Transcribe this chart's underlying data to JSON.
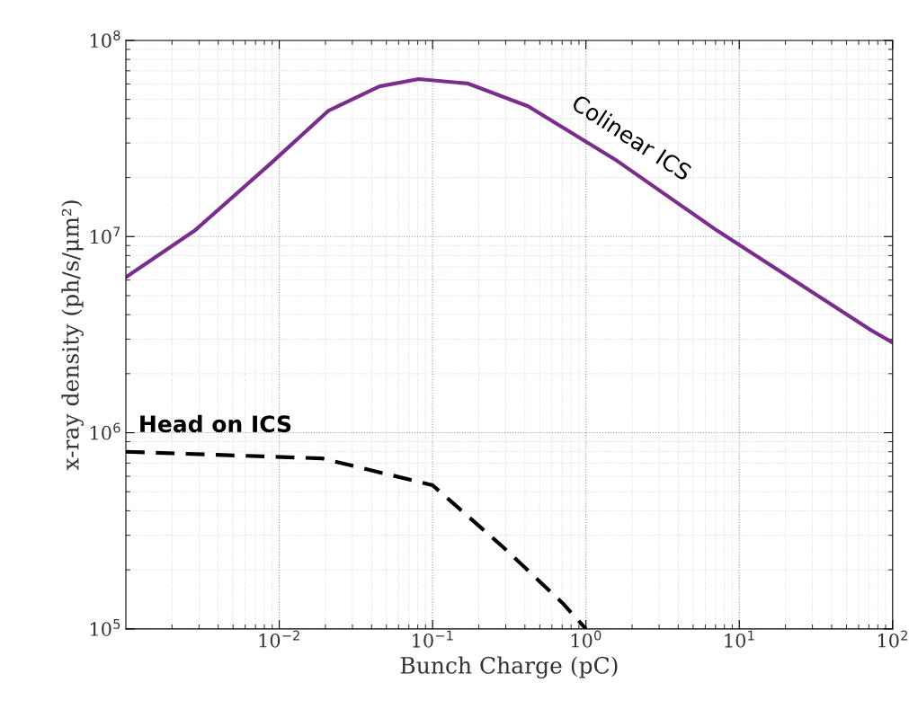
{
  "chart_data": {
    "type": "line",
    "xlabel": "Bunch Charge (pC)",
    "ylabel": "x-ray density (ph/s/μm²)",
    "log": "xy",
    "grid": true,
    "xlim": [
      0.001,
      100
    ],
    "ylim": [
      100000,
      100000000
    ],
    "xticks": [
      {
        "value": 0.01,
        "label": "10$^{−2}$"
      },
      {
        "value": 0.1,
        "label": "10$^{−1}$"
      },
      {
        "value": 1,
        "label": "10$^{0}$"
      },
      {
        "value": 10,
        "label": "10$^{1}$"
      },
      {
        "value": 100,
        "label": "10$^{2}$"
      }
    ],
    "yticks": [
      {
        "value": 100000,
        "label": "10$^{5}$"
      },
      {
        "value": 1000000,
        "label": "10$^{6}$"
      },
      {
        "value": 10000000,
        "label": "10$^{7}$"
      },
      {
        "value": 100000000,
        "label": "10$^{8}$"
      }
    ],
    "series": [
      {
        "name": "Colinear ICS",
        "color": "#7b2d8e",
        "line_style": "solid",
        "x": [
          0.001,
          0.0028,
          0.0088,
          0.021,
          0.045,
          0.081,
          0.17,
          0.42,
          1.6,
          7.2,
          72,
          100
        ],
        "values": [
          6200000,
          10700000,
          23600000,
          43900000,
          58300000,
          63500000,
          60300000,
          46200000,
          24300000,
          10700000,
          3340000,
          2880000
        ]
      },
      {
        "name": "Head on ICS",
        "color": "#000000",
        "line_style": "dashed",
        "x": [
          0.001,
          0.019,
          0.1,
          0.29,
          0.7,
          1.0
        ],
        "values": [
          800000,
          740000,
          540000,
          260000,
          136000,
          100000
        ]
      }
    ]
  }
}
